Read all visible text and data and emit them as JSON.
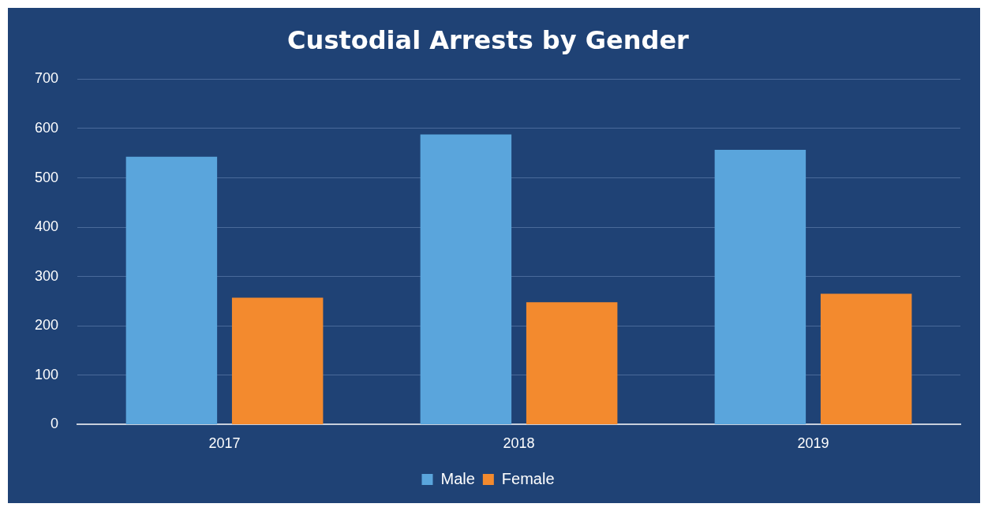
{
  "chart_data": {
    "type": "bar",
    "title": "Custodial Arrests by Gender",
    "categories": [
      "2017",
      "2018",
      "2019"
    ],
    "series": [
      {
        "name": "Male",
        "color": "#5aa5dc",
        "values": [
          543,
          588,
          557
        ]
      },
      {
        "name": "Female",
        "color": "#f38a2e",
        "values": [
          257,
          248,
          265
        ]
      }
    ],
    "ylim": [
      0,
      700
    ],
    "yticks": [
      0,
      100,
      200,
      300,
      400,
      500,
      600,
      700
    ],
    "grid": "y",
    "legend": "bottom"
  }
}
